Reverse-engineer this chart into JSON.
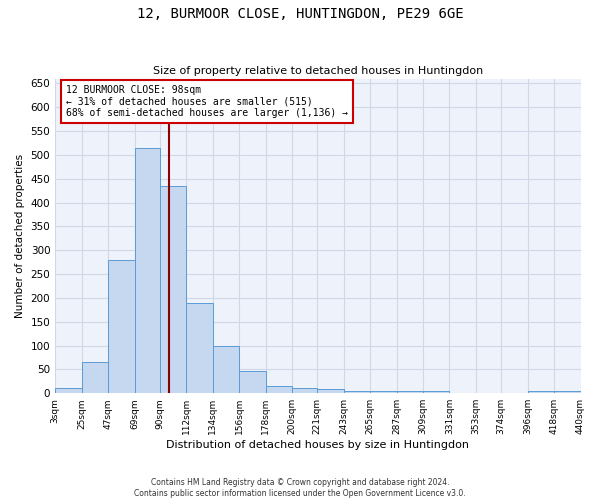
{
  "title": "12, BURMOOR CLOSE, HUNTINGDON, PE29 6GE",
  "subtitle": "Size of property relative to detached houses in Huntingdon",
  "xlabel": "Distribution of detached houses by size in Huntingdon",
  "ylabel": "Number of detached properties",
  "footer_line1": "Contains HM Land Registry data © Crown copyright and database right 2024.",
  "footer_line2": "Contains public sector information licensed under the Open Government Licence v3.0.",
  "annotation_title": "12 BURMOOR CLOSE: 98sqm",
  "annotation_line1": "← 31% of detached houses are smaller (515)",
  "annotation_line2": "68% of semi-detached houses are larger (1,136) →",
  "property_size": 98,
  "bin_edges": [
    3,
    25,
    47,
    69,
    90,
    112,
    134,
    156,
    178,
    200,
    221,
    243,
    265,
    287,
    309,
    331,
    353,
    374,
    396,
    418,
    440
  ],
  "bin_heights": [
    10,
    65,
    280,
    515,
    435,
    190,
    100,
    46,
    15,
    11,
    8,
    5,
    5,
    5,
    5,
    0,
    0,
    0,
    4,
    4
  ],
  "bar_color": "#c5d8f0",
  "bar_edge_color": "#5b9bd5",
  "grid_color": "#d0d8e8",
  "bg_color": "#eef2fa",
  "vline_color": "#8b0000",
  "vline_x": 98,
  "annotation_box_color": "#ffffff",
  "annotation_box_edge": "#cc0000",
  "ylim": [
    0,
    660
  ],
  "yticks": [
    0,
    50,
    100,
    150,
    200,
    250,
    300,
    350,
    400,
    450,
    500,
    550,
    600,
    650
  ]
}
